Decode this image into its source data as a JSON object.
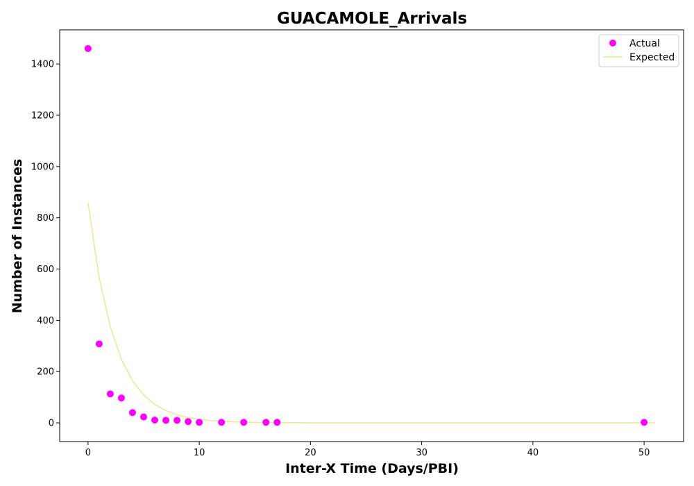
{
  "chart_data": {
    "type": "scatter",
    "title": "GUACAMOLE_Arrivals",
    "xlabel": "Inter-X Time (Days/PBI)",
    "ylabel": "Number of Instances",
    "xlim": [
      -2.55,
      53.55
    ],
    "ylim": [
      -73,
      1533
    ],
    "xticks": [
      0,
      10,
      20,
      30,
      40,
      50
    ],
    "yticks": [
      0,
      200,
      400,
      600,
      800,
      1000,
      1200,
      1400
    ],
    "grid": false,
    "legend_position": "top-right",
    "series": [
      {
        "name": "Actual",
        "kind": "scatter",
        "color": "#ff00ff",
        "points": [
          [
            0,
            1460
          ],
          [
            1,
            308
          ],
          [
            2,
            113
          ],
          [
            3,
            97
          ],
          [
            4,
            40
          ],
          [
            5,
            23
          ],
          [
            6,
            11
          ],
          [
            7,
            10
          ],
          [
            8,
            10
          ],
          [
            9,
            5
          ],
          [
            10,
            2
          ],
          [
            12,
            2
          ],
          [
            14,
            2
          ],
          [
            16,
            2
          ],
          [
            17,
            2
          ],
          [
            50,
            2
          ]
        ]
      },
      {
        "name": "Expected",
        "kind": "line",
        "color": "#f0e68c",
        "points": [
          [
            0,
            857
          ],
          [
            1,
            567
          ],
          [
            2,
            375
          ],
          [
            3,
            248
          ],
          [
            4,
            164
          ],
          [
            5,
            109
          ],
          [
            6,
            72
          ],
          [
            7,
            47.6
          ],
          [
            8,
            31.5
          ],
          [
            9,
            20.9
          ],
          [
            10,
            13.8
          ],
          [
            11,
            9.1
          ],
          [
            12,
            6.0
          ],
          [
            13,
            4.0
          ],
          [
            14,
            2.6
          ],
          [
            15,
            1.7
          ],
          [
            16,
            1.2
          ],
          [
            17,
            0.8
          ],
          [
            18,
            0.5
          ],
          [
            19,
            0.3
          ],
          [
            20,
            0.2
          ],
          [
            21,
            0.1
          ],
          [
            22,
            0.1
          ],
          [
            23,
            0
          ],
          [
            24,
            0
          ],
          [
            25,
            0
          ],
          [
            26,
            0
          ],
          [
            27,
            0
          ],
          [
            28,
            0
          ],
          [
            29,
            0
          ],
          [
            30,
            0
          ],
          [
            31,
            0
          ],
          [
            32,
            0
          ],
          [
            33,
            0
          ],
          [
            34,
            0
          ],
          [
            35,
            0
          ],
          [
            36,
            0
          ],
          [
            37,
            0
          ],
          [
            38,
            0
          ],
          [
            39,
            0
          ],
          [
            40,
            0
          ],
          [
            41,
            0
          ],
          [
            42,
            0
          ],
          [
            43,
            0
          ],
          [
            44,
            0
          ],
          [
            45,
            0
          ],
          [
            46,
            0
          ],
          [
            47,
            0
          ],
          [
            48,
            0
          ],
          [
            49,
            0
          ],
          [
            50,
            0
          ],
          [
            51,
            0
          ]
        ]
      }
    ]
  }
}
